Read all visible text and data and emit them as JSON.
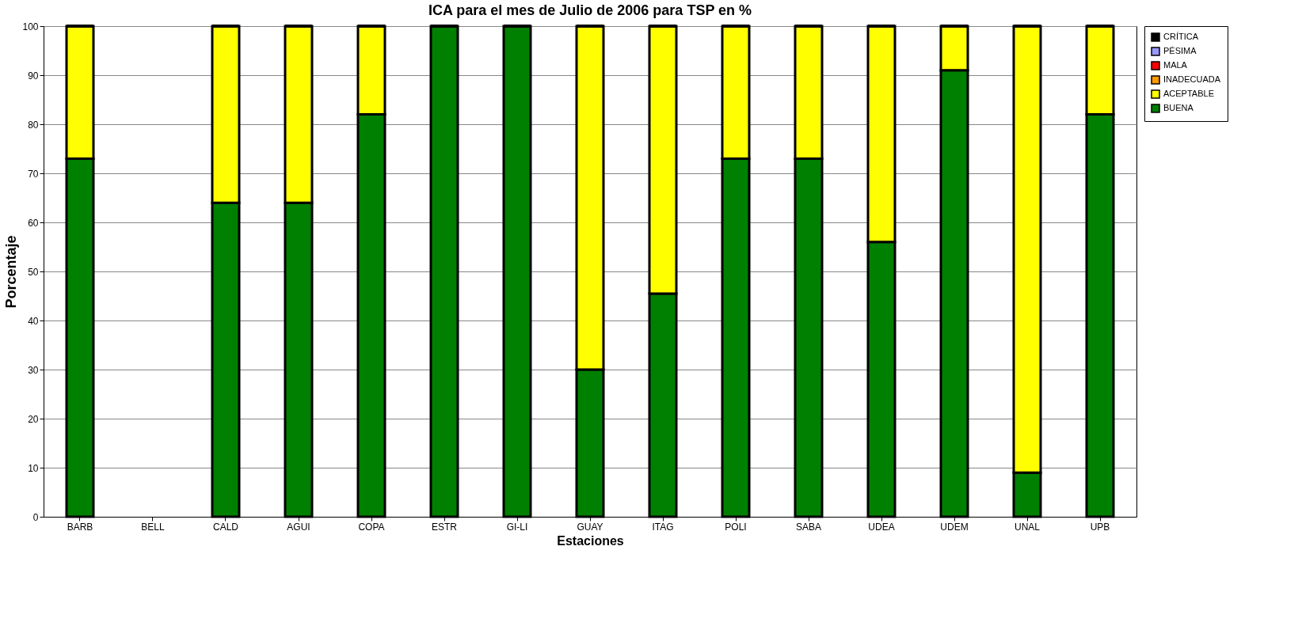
{
  "chart_data": {
    "type": "bar",
    "title": "ICA para el mes de Julio de 2006 para TSP en %",
    "xlabel": "Estaciones",
    "ylabel": "Porcentaje",
    "categories": [
      "BARB",
      "BELL",
      "CALD",
      "AGUI",
      "COPA",
      "ESTR",
      "GI-LI",
      "GUAY",
      "ITAG",
      "POLI",
      "SABA",
      "UDEA",
      "UDEM",
      "UNAL",
      "UPB"
    ],
    "stacked": true,
    "series": [
      {
        "name": "BUENA",
        "color": "#008000",
        "values": [
          73,
          null,
          64,
          64,
          82,
          100,
          100,
          30,
          45.5,
          73,
          73,
          56,
          91,
          9,
          82
        ]
      },
      {
        "name": "ACEPTABLE",
        "color": "#ffff00",
        "values": [
          27,
          null,
          36,
          36,
          18,
          0,
          0,
          70,
          54.5,
          27,
          27,
          44,
          9,
          91,
          18
        ]
      },
      {
        "name": "INADECUADA",
        "color": "#ff9900",
        "values": [
          0,
          null,
          0,
          0,
          0,
          0,
          0,
          0,
          0,
          0,
          0,
          0,
          0,
          0,
          0
        ]
      },
      {
        "name": "MALA",
        "color": "#ff0000",
        "values": [
          0,
          null,
          0,
          0,
          0,
          0,
          0,
          0,
          0,
          0,
          0,
          0,
          0,
          0,
          0
        ]
      },
      {
        "name": "PÉSIMA",
        "color": "#9999ff",
        "values": [
          0,
          null,
          0,
          0,
          0,
          0,
          0,
          0,
          0,
          0,
          0,
          0,
          0,
          0,
          0
        ]
      },
      {
        "name": "CRÍTICA",
        "color": "#000000",
        "values": [
          0,
          null,
          0,
          0,
          0,
          0,
          0,
          0,
          0,
          0,
          0,
          0,
          0,
          0,
          0
        ]
      }
    ],
    "ylim": [
      0,
      100
    ],
    "yticks": [
      0,
      10,
      20,
      30,
      40,
      50,
      60,
      70,
      80,
      90,
      100
    ],
    "grid": "y",
    "legend": "top right"
  }
}
